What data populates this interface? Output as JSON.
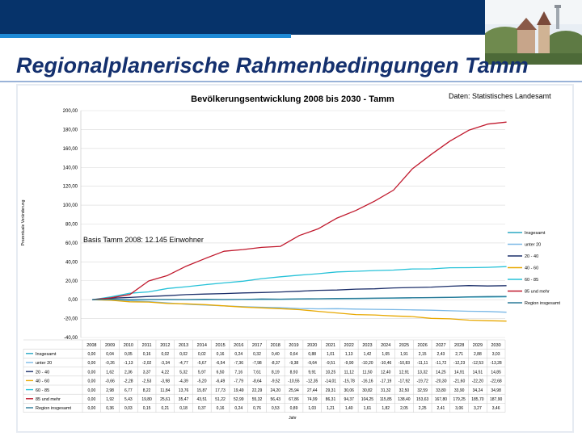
{
  "page": {
    "title": "Regionalplanerische Rahmenbedingungen Tamm",
    "source": "Daten: Statistisches Landesamt"
  },
  "colors": {
    "topbar": "#06336a",
    "accent": "#1e8ad6",
    "title": "#14306e"
  },
  "chart_data": {
    "type": "line",
    "title": "Bevölkerungsentwicklung 2008 bis 2030 - Tamm",
    "ylabel": "Prozentuale Veränderung",
    "xlabel": "Jahr",
    "ylim": [
      -40,
      200
    ],
    "yticks": [
      "200,00",
      "180,00",
      "160,00",
      "140,00",
      "120,00",
      "100,00",
      "80,00",
      "60,00",
      "40,00",
      "20,00",
      "0,00",
      "-20,00",
      "-40,00"
    ],
    "grid": true,
    "legend_position": "right",
    "annotation": "Basis Tamm 2008: 12.145 Einwohner",
    "categories": [
      "2008",
      "2009",
      "2010",
      "2011",
      "2012",
      "2013",
      "2014",
      "2015",
      "2016",
      "2017",
      "2018",
      "2019",
      "2020",
      "2021",
      "2022",
      "2023",
      "2024",
      "2025",
      "2026",
      "2027",
      "2028",
      "2029",
      "2030"
    ],
    "series": [
      {
        "name": "Insgesamt",
        "color": "#2aa8c4",
        "values": [
          0,
          0.04,
          0.05,
          0.16,
          0.02,
          0.02,
          0.02,
          0.16,
          0.24,
          0.32,
          0.4,
          0.64,
          0.88,
          1.01,
          1.13,
          1.42,
          1.65,
          1.91,
          2.15,
          2.43,
          2.71,
          2.88,
          3.03
        ]
      },
      {
        "name": "unter 20",
        "color": "#7ab8e6",
        "values": [
          0,
          -0.26,
          -1.13,
          -2.02,
          -3.34,
          -4.77,
          -5.67,
          -6.54,
          -7.36,
          -7.98,
          -8.37,
          -9.38,
          -9.64,
          -9.51,
          -9.9,
          -10.2,
          -10.46,
          -10.83,
          -11.11,
          -11.72,
          -12.23,
          -12.53,
          -13.28
        ]
      },
      {
        "name": "20 - 40",
        "color": "#1c2f6a",
        "values": [
          0,
          1.62,
          2.36,
          3.37,
          4.22,
          5.32,
          5.97,
          6.5,
          7.16,
          7.61,
          8.19,
          8.93,
          9.91,
          10.25,
          11.12,
          11.5,
          12.4,
          12.91,
          13.32,
          14.25,
          14.91,
          14.51,
          14.85
        ]
      },
      {
        "name": "40 - 60",
        "color": "#e8a800",
        "values": [
          0,
          -0.66,
          -2.28,
          -2.53,
          -3.98,
          -4.39,
          -5.2,
          -6.49,
          -7.79,
          -8.64,
          -9.52,
          -10.55,
          -12.35,
          -14.01,
          -15.78,
          -16.16,
          -17.19,
          -17.92,
          -19.72,
          -20.3,
          -21.6,
          -22.2,
          -22.68
        ]
      },
      {
        "name": "60 - 85",
        "color": "#27c2d8",
        "values": [
          0,
          2.98,
          6.77,
          8.22,
          11.84,
          13.76,
          15.87,
          17.73,
          19.49,
          22.29,
          24.2,
          25.94,
          27.44,
          29.31,
          30.06,
          30.82,
          31.32,
          32.5,
          32.59,
          33.8,
          33.9,
          34.24,
          34.98
        ]
      },
      {
        "name": "85 und mehr",
        "color": "#c0182c",
        "values": [
          0,
          1.92,
          5.43,
          19.8,
          25.61,
          35.47,
          43.51,
          51.22,
          52.99,
          55.32,
          56.43,
          67.86,
          74.99,
          86.31,
          94.37,
          104.25,
          115.85,
          138.4,
          153.63,
          167.8,
          179.25,
          185.7,
          187.9
        ]
      },
      {
        "name": "Region insgesamt",
        "color": "#2a7a98",
        "values": [
          0,
          0.36,
          0.03,
          0.15,
          0.21,
          0.18,
          0.37,
          0.16,
          0.24,
          0.76,
          0.53,
          0.89,
          1.03,
          1.21,
          1.4,
          1.61,
          1.82,
          2.05,
          2.25,
          2.41,
          3.06,
          3.27,
          3.46
        ]
      }
    ],
    "table_rows": [
      {
        "label": "Insgesamt",
        "cells": [
          "0,00",
          "0,04",
          "0,05",
          "0,16",
          "0,02",
          "0,02",
          "0,02",
          "0,16",
          "0,24",
          "0,32",
          "0,40",
          "0,64",
          "0,88",
          "1,01",
          "1,13",
          "1,42",
          "1,65",
          "1,91",
          "2,15",
          "2,43",
          "2,71",
          "2,88",
          "3,03"
        ]
      },
      {
        "label": "unter 20",
        "cells": [
          "0,00",
          "-0,26",
          "-1,13",
          "-2,02",
          "-3,34",
          "-4,77",
          "-5,67",
          "-6,54",
          "-7,36",
          "-7,98",
          "-8,37",
          "-9,38",
          "-9,64",
          "-9,51",
          "-9,90",
          "-10,20",
          "-10,46",
          "-10,83",
          "-11,11",
          "-11,72",
          "-12,23",
          "-12,53",
          "-13,28"
        ]
      },
      {
        "label": "20 - 40",
        "cells": [
          "0,00",
          "1,62",
          "2,36",
          "3,37",
          "4,22",
          "5,32",
          "5,97",
          "6,50",
          "7,16",
          "7,61",
          "8,19",
          "8,93",
          "9,91",
          "10,25",
          "11,12",
          "11,50",
          "12,40",
          "12,91",
          "13,32",
          "14,25",
          "14,91",
          "14,51",
          "14,85"
        ]
      },
      {
        "label": "40 - 60",
        "cells": [
          "0,00",
          "-0,66",
          "-2,28",
          "-2,53",
          "-3,98",
          "-4,39",
          "-5,20",
          "-6,49",
          "-7,79",
          "-8,64",
          "-9,52",
          "-10,55",
          "-12,35",
          "-14,01",
          "-15,78",
          "-16,16",
          "-17,19",
          "-17,92",
          "-19,72",
          "-20,30",
          "-21,60",
          "-22,20",
          "-22,68"
        ]
      },
      {
        "label": "60 - 85",
        "cells": [
          "0,00",
          "2,98",
          "6,77",
          "8,22",
          "11,84",
          "13,76",
          "15,87",
          "17,73",
          "19,49",
          "22,29",
          "24,20",
          "25,94",
          "27,44",
          "29,31",
          "30,06",
          "30,82",
          "31,32",
          "32,50",
          "32,59",
          "33,80",
          "33,90",
          "34,24",
          "34,98"
        ]
      },
      {
        "label": "85 und mehr",
        "cells": [
          "0,00",
          "1,92",
          "5,43",
          "19,80",
          "25,61",
          "35,47",
          "43,51",
          "51,22",
          "52,99",
          "55,32",
          "56,43",
          "67,86",
          "74,99",
          "86,31",
          "94,37",
          "104,25",
          "115,85",
          "138,40",
          "153,63",
          "167,80",
          "179,25",
          "185,70",
          "187,90"
        ]
      },
      {
        "label": "Region insgesamt",
        "cells": [
          "0,00",
          "0,36",
          "0,03",
          "0,15",
          "0,21",
          "0,18",
          "0,37",
          "0,16",
          "0,24",
          "0,76",
          "0,53",
          "0,89",
          "1,03",
          "1,21",
          "1,40",
          "1,61",
          "1,82",
          "2,05",
          "2,25",
          "2,41",
          "3,06",
          "3,27",
          "3,46"
        ]
      }
    ]
  }
}
